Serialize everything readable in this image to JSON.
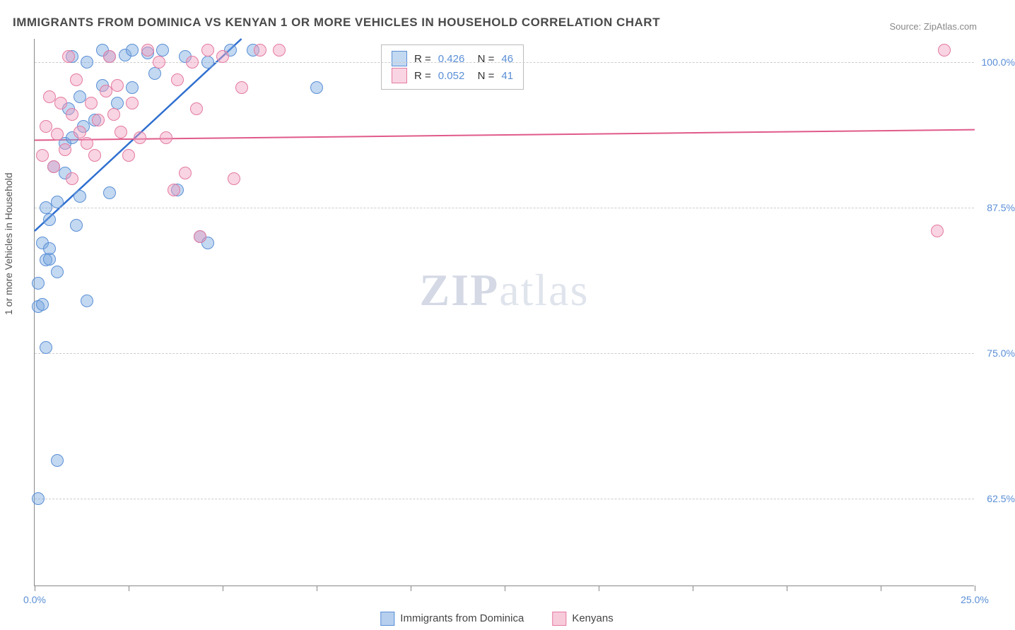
{
  "title": "IMMIGRANTS FROM DOMINICA VS KENYAN 1 OR MORE VEHICLES IN HOUSEHOLD CORRELATION CHART",
  "source": "Source: ZipAtlas.com",
  "watermark_zip": "ZIP",
  "watermark_atlas": "atlas",
  "y_axis_title": "1 or more Vehicles in Household",
  "chart": {
    "type": "scatter",
    "xlim": [
      0,
      25
    ],
    "ylim": [
      55,
      102
    ],
    "background_color": "#ffffff",
    "grid_color": "#cccccc",
    "point_radius": 9,
    "yticks": [
      {
        "v": 62.5,
        "label": "62.5%"
      },
      {
        "v": 75.0,
        "label": "75.0%"
      },
      {
        "v": 87.5,
        "label": "87.5%"
      },
      {
        "v": 100.0,
        "label": "100.0%"
      }
    ],
    "xticks_major": [
      0,
      25
    ],
    "xticks_minor": [
      2.5,
      5.0,
      7.5,
      10.0,
      12.5,
      15.0,
      17.5,
      20.0,
      22.5
    ],
    "series": [
      {
        "name": "Immigrants from Dominica",
        "fill": "rgba(122,168,224,0.45)",
        "stroke": "#5a8fd6",
        "line_color": "#2f6fd0",
        "line_width": 2.5,
        "R": "0.426",
        "N": "46",
        "trend": {
          "x1": 0,
          "y1": 85.5,
          "x2": 5.5,
          "y2": 102
        },
        "points": [
          [
            0.1,
            62.5
          ],
          [
            0.3,
            75.5
          ],
          [
            0.6,
            65.8
          ],
          [
            0.1,
            79.0
          ],
          [
            0.2,
            79.2
          ],
          [
            0.1,
            81.0
          ],
          [
            0.3,
            83.0
          ],
          [
            0.4,
            83.1
          ],
          [
            0.6,
            82.0
          ],
          [
            0.2,
            84.5
          ],
          [
            0.4,
            84.0
          ],
          [
            1.2,
            88.5
          ],
          [
            0.4,
            86.5
          ],
          [
            0.3,
            87.5
          ],
          [
            0.6,
            88.0
          ],
          [
            0.8,
            90.5
          ],
          [
            1.4,
            79.5
          ],
          [
            2.0,
            88.8
          ],
          [
            0.5,
            91.0
          ],
          [
            0.8,
            93.0
          ],
          [
            1.0,
            93.5
          ],
          [
            1.3,
            94.5
          ],
          [
            1.6,
            95.0
          ],
          [
            0.9,
            96.0
          ],
          [
            1.2,
            97.0
          ],
          [
            1.8,
            98.0
          ],
          [
            2.0,
            100.5
          ],
          [
            2.4,
            100.6
          ],
          [
            1.4,
            100.0
          ],
          [
            1.8,
            101.0
          ],
          [
            2.6,
            101.0
          ],
          [
            3.2,
            99.0
          ],
          [
            3.0,
            100.8
          ],
          [
            3.8,
            89.0
          ],
          [
            4.4,
            85.0
          ],
          [
            4.6,
            84.5
          ],
          [
            2.2,
            96.5
          ],
          [
            2.6,
            97.8
          ],
          [
            3.4,
            101.0
          ],
          [
            4.0,
            100.5
          ],
          [
            4.6,
            100.0
          ],
          [
            5.2,
            101.0
          ],
          [
            5.8,
            101.0
          ],
          [
            7.5,
            97.8
          ],
          [
            1.1,
            86.0
          ],
          [
            1.0,
            100.5
          ]
        ]
      },
      {
        "name": "Kenyans",
        "fill": "rgba(242,160,190,0.45)",
        "stroke": "#e47aa0",
        "line_color": "#e05a8a",
        "line_width": 2,
        "R": "0.052",
        "N": "41",
        "trend": {
          "x1": 0,
          "y1": 93.3,
          "x2": 25,
          "y2": 94.2
        },
        "points": [
          [
            0.2,
            92.0
          ],
          [
            0.5,
            91.0
          ],
          [
            0.8,
            92.5
          ],
          [
            0.6,
            93.8
          ],
          [
            1.0,
            95.5
          ],
          [
            1.2,
            94.0
          ],
          [
            1.5,
            96.5
          ],
          [
            1.7,
            95.0
          ],
          [
            1.9,
            97.5
          ],
          [
            2.2,
            98.0
          ],
          [
            2.3,
            94.0
          ],
          [
            2.6,
            96.5
          ],
          [
            2.8,
            93.5
          ],
          [
            3.0,
            101.0
          ],
          [
            3.3,
            100.0
          ],
          [
            3.8,
            98.5
          ],
          [
            4.0,
            90.5
          ],
          [
            4.3,
            96.0
          ],
          [
            4.6,
            101.0
          ],
          [
            5.0,
            100.5
          ],
          [
            5.3,
            90.0
          ],
          [
            5.5,
            97.8
          ],
          [
            6.0,
            101.0
          ],
          [
            6.5,
            101.0
          ],
          [
            3.7,
            89.0
          ],
          [
            4.4,
            85.0
          ],
          [
            1.0,
            90.0
          ],
          [
            0.3,
            94.5
          ],
          [
            0.7,
            96.5
          ],
          [
            1.4,
            93.0
          ],
          [
            2.0,
            100.5
          ],
          [
            2.5,
            92.0
          ],
          [
            3.5,
            93.5
          ],
          [
            24.0,
            85.5
          ],
          [
            24.2,
            101.0
          ],
          [
            0.4,
            97.0
          ],
          [
            1.1,
            98.5
          ],
          [
            1.6,
            92.0
          ],
          [
            0.9,
            100.5
          ],
          [
            2.1,
            95.5
          ],
          [
            4.2,
            100.0
          ]
        ]
      }
    ]
  },
  "xlabels": {
    "start": "0.0%",
    "end": "25.0%"
  },
  "bottom_legend": [
    {
      "swatch_fill": "rgba(122,168,224,0.55)",
      "swatch_stroke": "#5a8fd6",
      "label": "Immigrants from Dominica"
    },
    {
      "swatch_fill": "rgba(242,160,190,0.55)",
      "swatch_stroke": "#e47aa0",
      "label": "Kenyans"
    }
  ]
}
